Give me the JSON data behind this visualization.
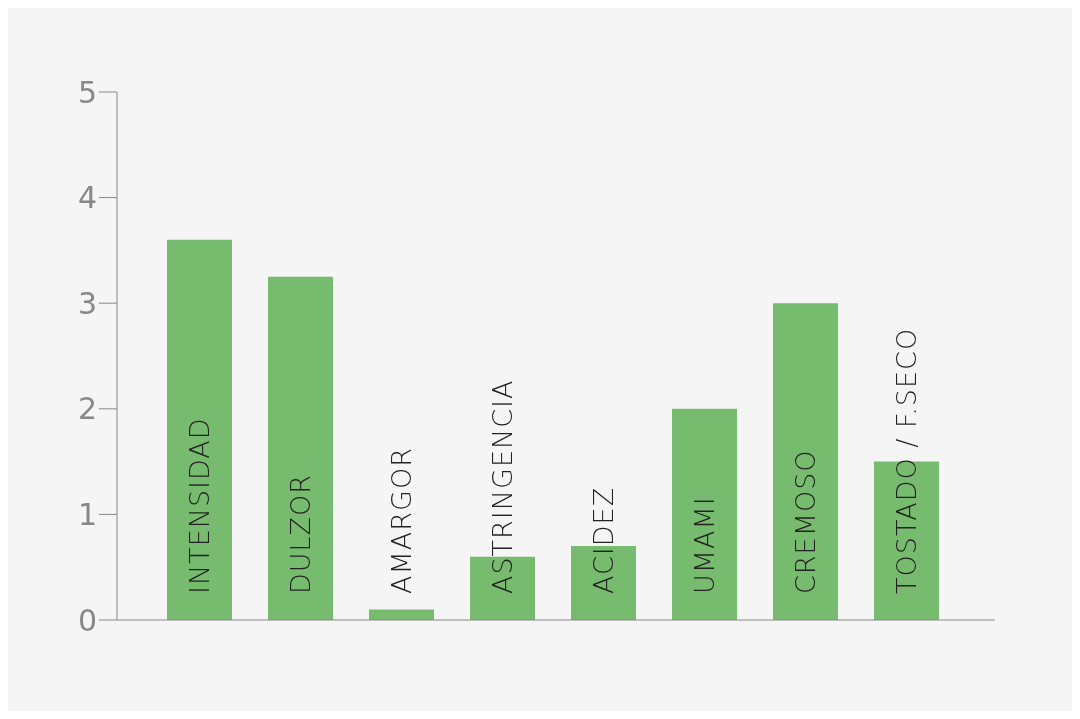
{
  "chart_data": {
    "type": "bar",
    "categories": [
      "INTENSIDAD",
      "DULZOR",
      "AMARGOR",
      "ASTRINGENCIA",
      "ACIDEZ",
      "UMAMI",
      "CREMOSO",
      "TOSTADO / F.SECO"
    ],
    "values": [
      3.6,
      3.25,
      0.1,
      0.6,
      0.7,
      2.0,
      3.0,
      1.5
    ],
    "color": "#77bb6e",
    "ylim": [
      0,
      5
    ],
    "yticks": [
      0,
      1,
      2,
      3,
      4,
      5
    ],
    "grid": false
  }
}
